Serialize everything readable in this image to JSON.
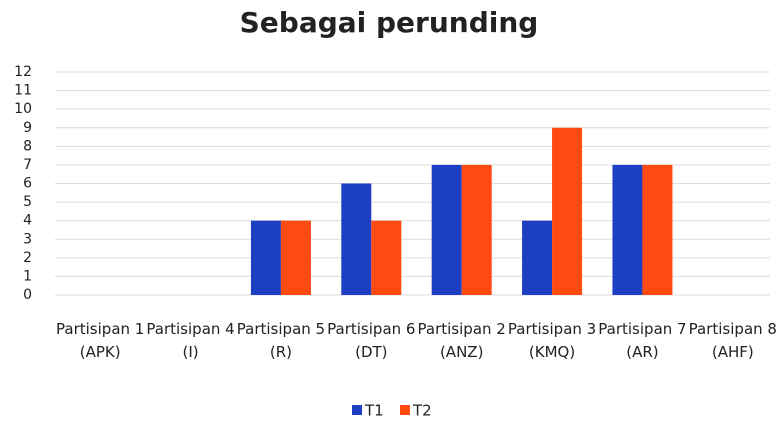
{
  "chart_data": {
    "type": "bar",
    "title": "Sebagai perunding",
    "categories": [
      "Partisipan 1 (APK)",
      "Partisipan 4 (I)",
      "Partisipan 5 (R)",
      "Partisipan 6 (DT)",
      "Partisipan 2 (ANZ)",
      "Partisipan 3 (KMQ)",
      "Partisipan 7 (AR)",
      "Partisipan 8 (AHF)"
    ],
    "series": [
      {
        "name": "T1",
        "color": "#1c3fc4",
        "values": [
          0,
          0,
          4,
          6,
          7,
          4,
          7,
          0
        ]
      },
      {
        "name": "T2",
        "color": "#ff4a12",
        "values": [
          0,
          0,
          4,
          4,
          7,
          9,
          7,
          0
        ]
      }
    ],
    "ylim": [
      0,
      12
    ],
    "yticks": [
      0,
      1,
      2,
      3,
      4,
      5,
      6,
      7,
      8,
      9,
      10,
      11,
      12
    ],
    "grid": true
  }
}
